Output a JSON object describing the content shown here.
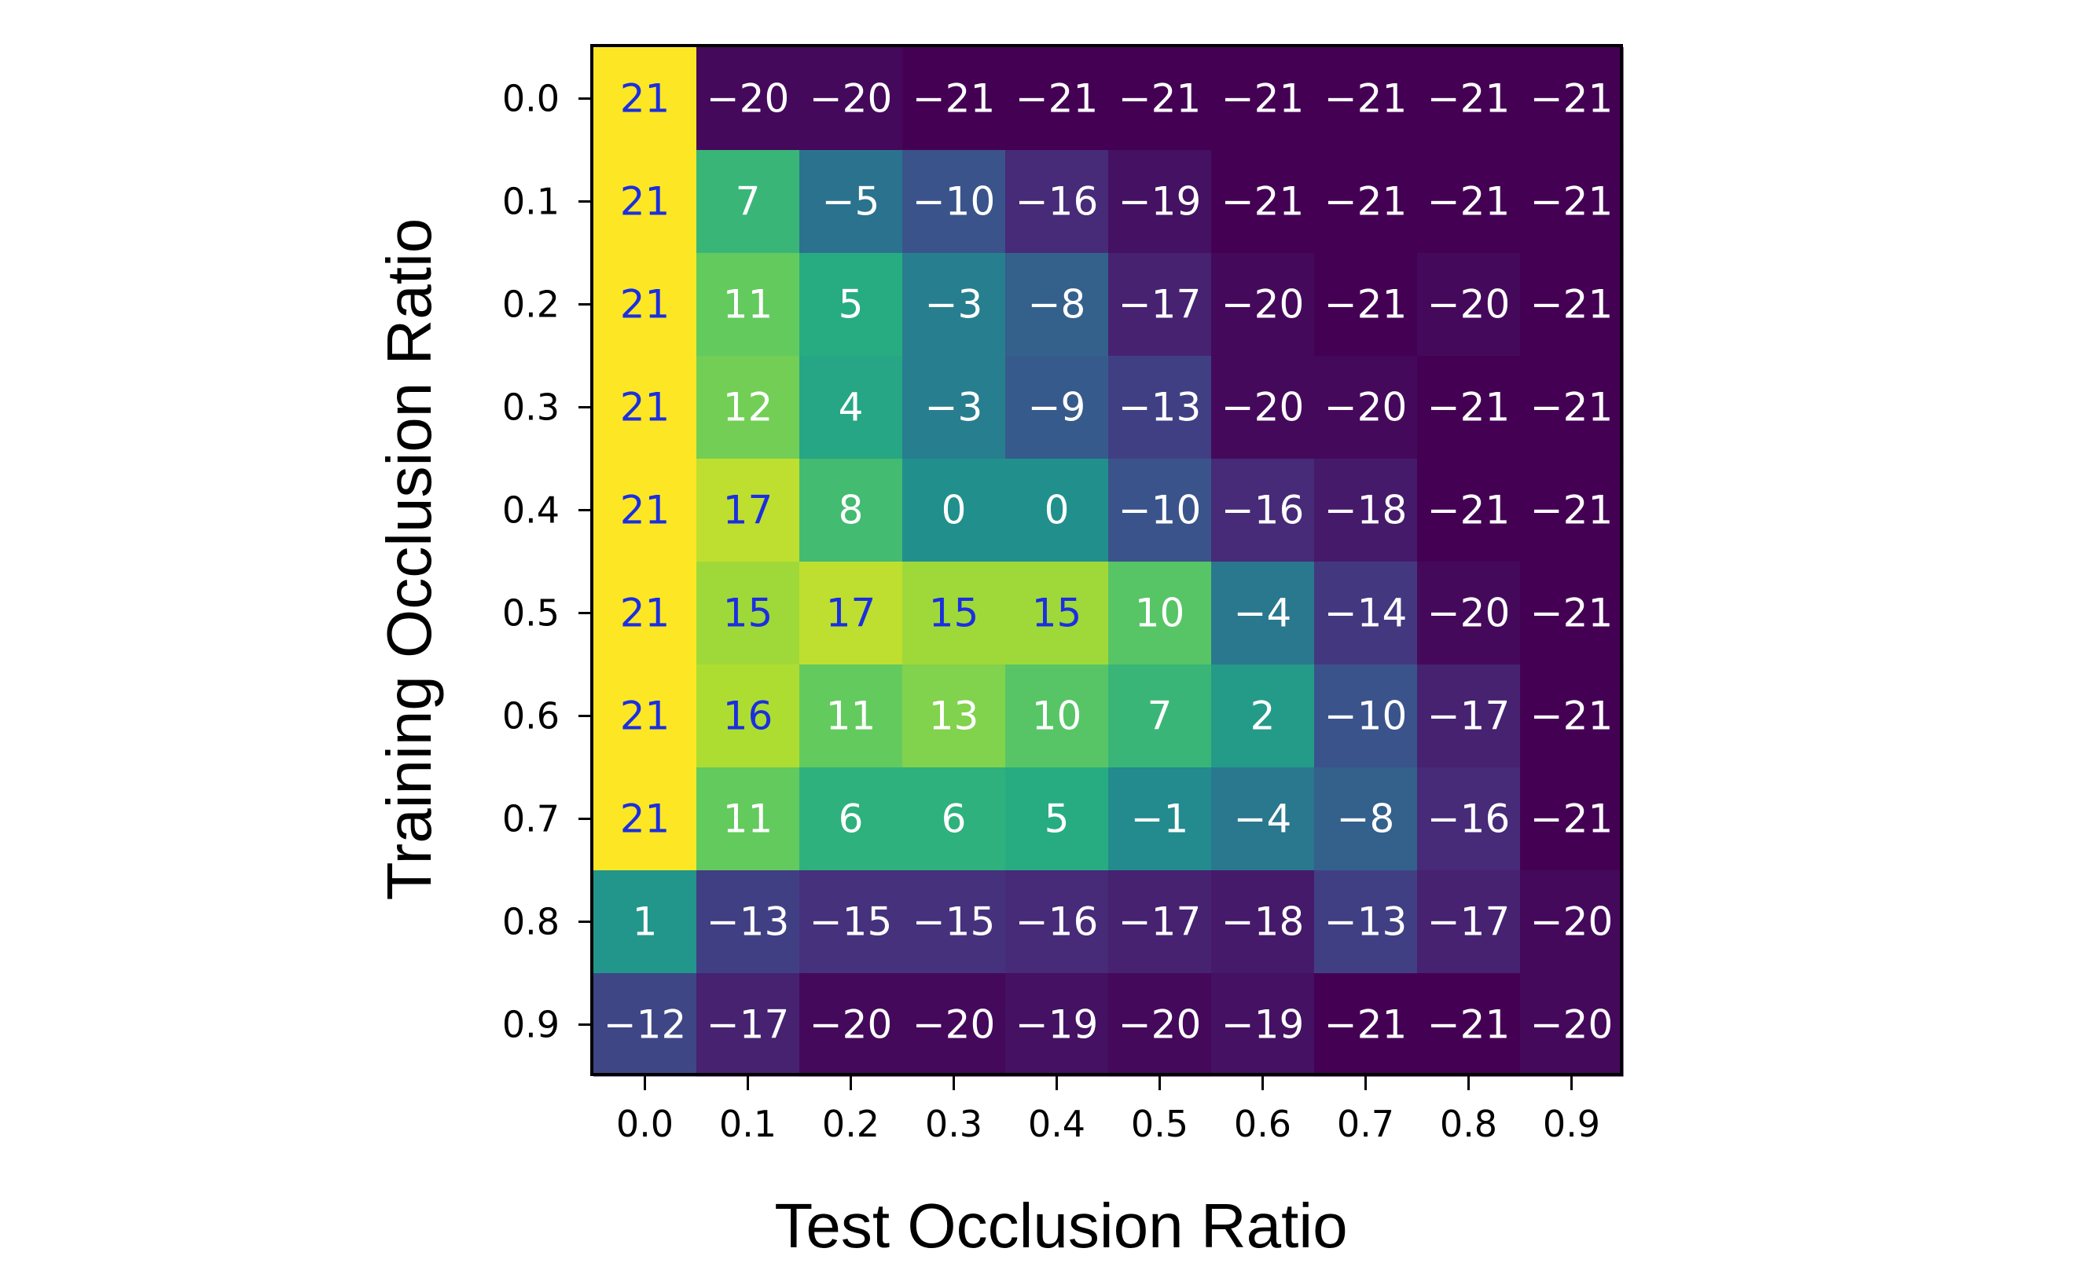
{
  "chart_data": {
    "type": "heatmap",
    "title": "",
    "xlabel": "Test Occlusion Ratio",
    "ylabel": "Training Occlusion Ratio",
    "x_categories": [
      "0.0",
      "0.1",
      "0.2",
      "0.3",
      "0.4",
      "0.5",
      "0.6",
      "0.7",
      "0.8",
      "0.9"
    ],
    "y_categories": [
      "0.0",
      "0.1",
      "0.2",
      "0.3",
      "0.4",
      "0.5",
      "0.6",
      "0.7",
      "0.8",
      "0.9"
    ],
    "values": [
      [
        21,
        -20,
        -20,
        -21,
        -21,
        -21,
        -21,
        -21,
        -21,
        -21
      ],
      [
        21,
        7,
        -5,
        -10,
        -16,
        -19,
        -21,
        -21,
        -21,
        -21
      ],
      [
        21,
        11,
        5,
        -3,
        -8,
        -17,
        -20,
        -21,
        -20,
        -21
      ],
      [
        21,
        12,
        4,
        -3,
        -9,
        -13,
        -20,
        -20,
        -21,
        -21
      ],
      [
        21,
        17,
        8,
        0,
        0,
        -10,
        -16,
        -18,
        -21,
        -21
      ],
      [
        21,
        15,
        17,
        15,
        15,
        10,
        -4,
        -14,
        -20,
        -21
      ],
      [
        21,
        16,
        11,
        13,
        10,
        7,
        2,
        -10,
        -17,
        -21
      ],
      [
        21,
        11,
        6,
        6,
        5,
        -1,
        -4,
        -8,
        -16,
        -21
      ],
      [
        1,
        -13,
        -15,
        -15,
        -16,
        -17,
        -18,
        -13,
        -17,
        -20
      ],
      [
        -12,
        -17,
        -20,
        -20,
        -19,
        -20,
        -19,
        -21,
        -21,
        -20
      ]
    ],
    "value_range": [
      -21,
      21
    ],
    "colormap": "viridis",
    "label_colors": {
      "high": "#1a2fe0",
      "default": "#ffffff"
    },
    "grid": false,
    "legend": "none"
  }
}
